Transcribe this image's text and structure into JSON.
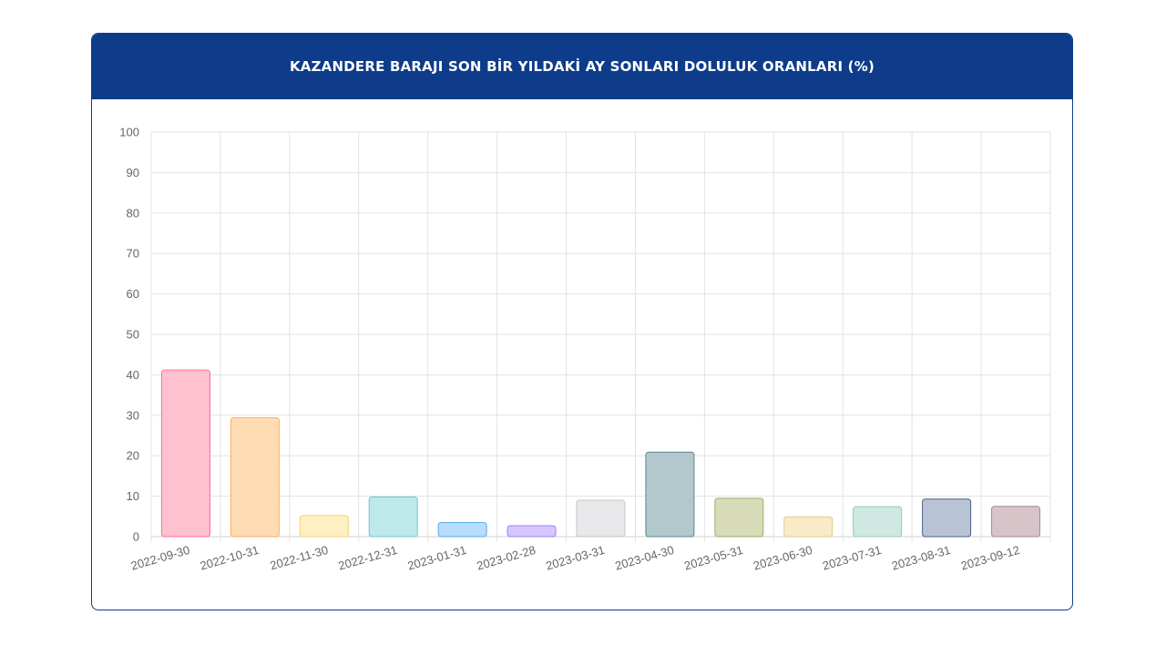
{
  "header": {
    "title": "KAZANDERE BARAJI SON BİR YILDAKİ AY SONLARI DOLULUK ORANLARI (%)"
  },
  "chart_data": {
    "type": "bar",
    "title": "KAZANDERE BARAJI SON BİR YILDAKİ AY SONLARI DOLULUK ORANLARI (%)",
    "xlabel": "",
    "ylabel": "",
    "ylim": [
      0,
      100
    ],
    "yticks": [
      "0",
      "10",
      "20",
      "30",
      "40",
      "50",
      "60",
      "70",
      "80",
      "90",
      "100"
    ],
    "grid": true,
    "legend": "none",
    "categories": [
      "2022-09-30",
      "2022-10-31",
      "2022-11-30",
      "2022-12-31",
      "2023-01-31",
      "2023-02-28",
      "2023-03-31",
      "2023-04-30",
      "2023-05-31",
      "2023-06-30",
      "2023-07-31",
      "2023-08-31",
      "2023-09-12"
    ],
    "values": [
      41.2,
      29.4,
      5.2,
      9.8,
      3.5,
      2.7,
      9.0,
      20.9,
      9.5,
      4.9,
      7.4,
      9.3,
      7.5
    ],
    "colors": [
      {
        "fill": "#ffc0cf",
        "stroke": "#ff6f91"
      },
      {
        "fill": "#ffdbb3",
        "stroke": "#ffad5c"
      },
      {
        "fill": "#fff0c2",
        "stroke": "#f5d27a"
      },
      {
        "fill": "#bde9ea",
        "stroke": "#6cc9cc"
      },
      {
        "fill": "#b8dcfb",
        "stroke": "#5aaeea"
      },
      {
        "fill": "#d6c5ff",
        "stroke": "#a07ff5"
      },
      {
        "fill": "#e8e8ea",
        "stroke": "#c4c4c8"
      },
      {
        "fill": "#b3c8cc",
        "stroke": "#5e8790"
      },
      {
        "fill": "#d7dbb8",
        "stroke": "#a4ab6a"
      },
      {
        "fill": "#f9ebc8",
        "stroke": "#e2c98a"
      },
      {
        "fill": "#cfe8e2",
        "stroke": "#95c9bc"
      },
      {
        "fill": "#b8c3d6",
        "stroke": "#4c5e84"
      },
      {
        "fill": "#d8c3c9",
        "stroke": "#a88a93"
      }
    ]
  }
}
